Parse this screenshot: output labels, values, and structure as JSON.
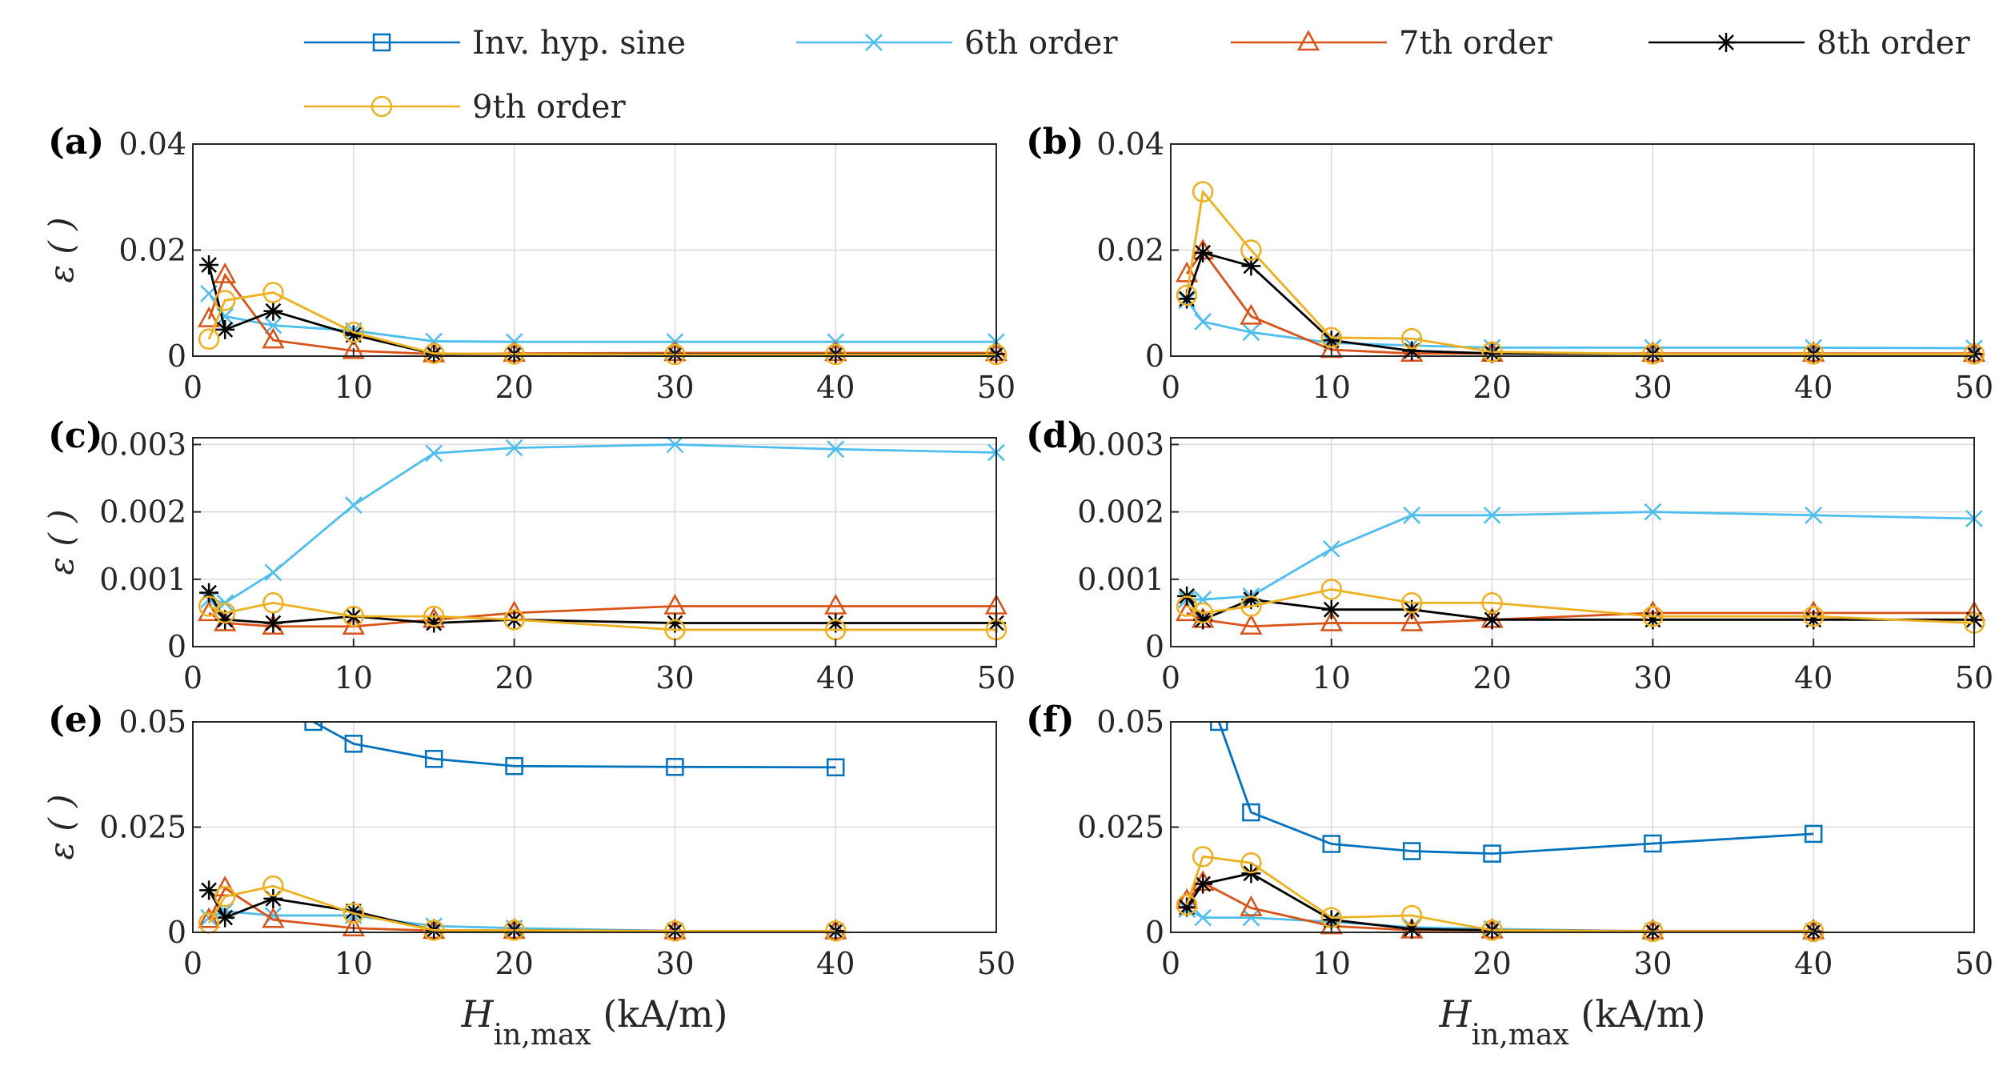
{
  "chart_data": {
    "type": "line",
    "legend": [
      {
        "name": "Inv. hyp. sine",
        "color": "#0072BD",
        "marker": "square"
      },
      {
        "name": "6th order",
        "color": "#4DBEEE",
        "marker": "x"
      },
      {
        "name": "7th order",
        "color": "#D95319",
        "marker": "triangle"
      },
      {
        "name": "8th order",
        "color": "#000000",
        "marker": "star"
      },
      {
        "name": "9th order",
        "color": "#EDB120",
        "marker": "circle"
      }
    ],
    "xlabel": {
      "main": "H",
      "sub": "in,max",
      "unit": " (kA/m)"
    },
    "ylabel": "ε ( )",
    "xlim": [
      0,
      50
    ],
    "xticks": [
      "0",
      "10",
      "20",
      "30",
      "40",
      "50"
    ],
    "panels": [
      {
        "label": "(a)",
        "ylim": [
          0,
          0.04
        ],
        "yticks": [
          {
            "v": 0,
            "label": "0"
          },
          {
            "v": 0.02,
            "label": "0.02"
          },
          {
            "v": 0.04,
            "label": "0.04"
          }
        ],
        "series": [
          {
            "name": "6th order",
            "x": [
              1,
              2,
              5,
              10,
              15,
              20,
              30,
              40,
              50
            ],
            "y": [
              0.0118,
              0.0075,
              0.0058,
              0.0048,
              0.0028,
              0.0027,
              0.0027,
              0.0027,
              0.0027
            ]
          },
          {
            "name": "7th order",
            "x": [
              1,
              2,
              5,
              10,
              15,
              20,
              30,
              40,
              50
            ],
            "y": [
              0.007,
              0.0153,
              0.003,
              0.001,
              0.0004,
              0.0005,
              0.0006,
              0.0006,
              0.0006
            ]
          },
          {
            "name": "8th order",
            "x": [
              1,
              2,
              5,
              10,
              15,
              20,
              30,
              40,
              50
            ],
            "y": [
              0.0172,
              0.005,
              0.0085,
              0.004,
              0.0004,
              0.0004,
              0.0004,
              0.0004,
              0.0004
            ]
          },
          {
            "name": "9th order",
            "x": [
              1,
              2,
              5,
              10,
              15,
              20,
              30,
              40,
              50
            ],
            "y": [
              0.0032,
              0.0105,
              0.012,
              0.0045,
              0.0005,
              0.0004,
              0.0003,
              0.0003,
              0.0003
            ]
          }
        ]
      },
      {
        "label": "(b)",
        "ylim": [
          0,
          0.04
        ],
        "yticks": [
          {
            "v": 0,
            "label": "0"
          },
          {
            "v": 0.02,
            "label": "0.02"
          },
          {
            "v": 0.04,
            "label": "0.04"
          }
        ],
        "series": [
          {
            "name": "6th order",
            "x": [
              1,
              2,
              5,
              10,
              15,
              20,
              30,
              40,
              50
            ],
            "y": [
              0.0105,
              0.0065,
              0.0045,
              0.0025,
              0.002,
              0.0016,
              0.0016,
              0.0016,
              0.0015
            ]
          },
          {
            "name": "7th order",
            "x": [
              1,
              2,
              5,
              10,
              15,
              20,
              30,
              40,
              50
            ],
            "y": [
              0.0155,
              0.0198,
              0.0075,
              0.0012,
              0.0005,
              0.0005,
              0.0005,
              0.0005,
              0.0005
            ]
          },
          {
            "name": "8th order",
            "x": [
              1,
              2,
              5,
              10,
              15,
              20,
              30,
              40,
              50
            ],
            "y": [
              0.0108,
              0.0195,
              0.017,
              0.003,
              0.001,
              0.0005,
              0.0004,
              0.0004,
              0.0004
            ]
          },
          {
            "name": "9th order",
            "x": [
              1,
              2,
              5,
              10,
              15,
              20,
              30,
              40,
              50
            ],
            "y": [
              0.0115,
              0.031,
              0.02,
              0.0035,
              0.0033,
              0.0008,
              0.0004,
              0.0004,
              0.0004
            ]
          }
        ]
      },
      {
        "label": "(c)",
        "ylim": [
          0,
          0.0031
        ],
        "yticks": [
          {
            "v": 0,
            "label": "0"
          },
          {
            "v": 0.001,
            "label": "0.001"
          },
          {
            "v": 0.002,
            "label": "0.002"
          },
          {
            "v": 0.003,
            "label": "0.003"
          }
        ],
        "series": [
          {
            "name": "6th order",
            "x": [
              1,
              2,
              5,
              10,
              15,
              20,
              30,
              40,
              50
            ],
            "y": [
              0.0007,
              0.00065,
              0.0011,
              0.0021,
              0.00287,
              0.00295,
              0.003,
              0.00293,
              0.00288
            ]
          },
          {
            "name": "7th order",
            "x": [
              1,
              2,
              5,
              10,
              15,
              20,
              30,
              40,
              50
            ],
            "y": [
              0.0005,
              0.00035,
              0.0003,
              0.0003,
              0.0004,
              0.0005,
              0.0006,
              0.0006,
              0.0006
            ]
          },
          {
            "name": "8th order",
            "x": [
              1,
              2,
              5,
              10,
              15,
              20,
              30,
              40,
              50
            ],
            "y": [
              0.0008,
              0.0004,
              0.00035,
              0.00045,
              0.00035,
              0.0004,
              0.00035,
              0.00035,
              0.00035
            ]
          },
          {
            "name": "9th order",
            "x": [
              1,
              2,
              5,
              10,
              15,
              20,
              30,
              40,
              50
            ],
            "y": [
              0.0006,
              0.0005,
              0.00065,
              0.00045,
              0.00045,
              0.0004,
              0.00025,
              0.00025,
              0.00025
            ]
          }
        ]
      },
      {
        "label": "(d)",
        "ylim": [
          0,
          0.0031
        ],
        "yticks": [
          {
            "v": 0,
            "label": "0"
          },
          {
            "v": 0.001,
            "label": "0.001"
          },
          {
            "v": 0.002,
            "label": "0.002"
          },
          {
            "v": 0.003,
            "label": "0.003"
          }
        ],
        "series": [
          {
            "name": "6th order",
            "x": [
              1,
              2,
              5,
              10,
              15,
              20,
              30,
              40,
              50
            ],
            "y": [
              0.0007,
              0.0007,
              0.00075,
              0.00145,
              0.00195,
              0.00195,
              0.002,
              0.00195,
              0.0019
            ]
          },
          {
            "name": "7th order",
            "x": [
              1,
              2,
              5,
              10,
              15,
              20,
              30,
              40,
              50
            ],
            "y": [
              0.0005,
              0.0004,
              0.0003,
              0.00035,
              0.00035,
              0.0004,
              0.0005,
              0.0005,
              0.0005
            ]
          },
          {
            "name": "8th order",
            "x": [
              1,
              2,
              5,
              10,
              15,
              20,
              30,
              40,
              50
            ],
            "y": [
              0.00075,
              0.0004,
              0.0007,
              0.00055,
              0.00055,
              0.0004,
              0.0004,
              0.0004,
              0.0004
            ]
          },
          {
            "name": "9th order",
            "x": [
              1,
              2,
              5,
              10,
              15,
              20,
              30,
              40,
              50
            ],
            "y": [
              0.0006,
              0.0005,
              0.0006,
              0.00085,
              0.00065,
              0.00065,
              0.00045,
              0.00045,
              0.00035
            ]
          }
        ]
      },
      {
        "label": "(e)",
        "ylim": [
          0,
          0.05
        ],
        "yticks": [
          {
            "v": 0,
            "label": "0"
          },
          {
            "v": 0.025,
            "label": "0.025"
          },
          {
            "v": 0.05,
            "label": "0.05"
          }
        ],
        "series": [
          {
            "name": "Inv. hyp. sine",
            "x": [
              7.5,
              10,
              15,
              20,
              30,
              40
            ],
            "y": [
              0.05,
              0.0448,
              0.0412,
              0.0395,
              0.0393,
              0.0392
            ]
          },
          {
            "name": "6th order",
            "x": [
              1,
              2,
              5,
              10,
              15,
              20,
              30,
              40
            ],
            "y": [
              0.0035,
              0.005,
              0.004,
              0.004,
              0.0015,
              0.001,
              0.0003,
              0.0002
            ]
          },
          {
            "name": "7th order",
            "x": [
              1,
              2,
              5,
              10,
              15,
              20,
              30,
              40
            ],
            "y": [
              0.003,
              0.0105,
              0.003,
              0.001,
              0.0004,
              0.0004,
              0.0003,
              0.0003
            ]
          },
          {
            "name": "8th order",
            "x": [
              1,
              2,
              5,
              10,
              15,
              20,
              30,
              40
            ],
            "y": [
              0.01,
              0.0035,
              0.008,
              0.005,
              0.0005,
              0.0005,
              0.0003,
              0.0003
            ]
          },
          {
            "name": "9th order",
            "x": [
              1,
              2,
              5,
              10,
              15,
              20,
              30,
              40
            ],
            "y": [
              0.0022,
              0.0085,
              0.011,
              0.0045,
              0.0005,
              0.0005,
              0.0003,
              0.0003
            ]
          }
        ]
      },
      {
        "label": "(f)",
        "ylim": [
          0,
          0.05
        ],
        "yticks": [
          {
            "v": 0,
            "label": "0"
          },
          {
            "v": 0.025,
            "label": "0.025"
          },
          {
            "v": 0.05,
            "label": "0.05"
          }
        ],
        "series": [
          {
            "name": "Inv. hyp. sine",
            "x": [
              3,
              5,
              10,
              15,
              20,
              30,
              40
            ],
            "y": [
              0.05,
              0.0285,
              0.021,
              0.0193,
              0.0187,
              0.0211,
              0.0234
            ]
          },
          {
            "name": "6th order",
            "x": [
              1,
              2,
              5,
              10,
              15,
              20,
              30,
              40
            ],
            "y": [
              0.0055,
              0.0035,
              0.0035,
              0.0025,
              0.0012,
              0.0008,
              0.0002,
              0.0002
            ]
          },
          {
            "name": "7th order",
            "x": [
              1,
              2,
              5,
              10,
              15,
              20,
              30,
              40
            ],
            "y": [
              0.0075,
              0.0118,
              0.0058,
              0.0015,
              0.0005,
              0.0005,
              0.0003,
              0.0003
            ]
          },
          {
            "name": "8th order",
            "x": [
              1,
              2,
              5,
              10,
              15,
              20,
              30,
              40
            ],
            "y": [
              0.006,
              0.0115,
              0.014,
              0.003,
              0.0008,
              0.0005,
              0.0002,
              0.0002
            ]
          },
          {
            "name": "9th order",
            "x": [
              1,
              2,
              5,
              10,
              15,
              20,
              30,
              40
            ],
            "y": [
              0.0065,
              0.018,
              0.0165,
              0.0035,
              0.004,
              0.0005,
              0.0002,
              0.0002
            ]
          }
        ]
      }
    ]
  }
}
